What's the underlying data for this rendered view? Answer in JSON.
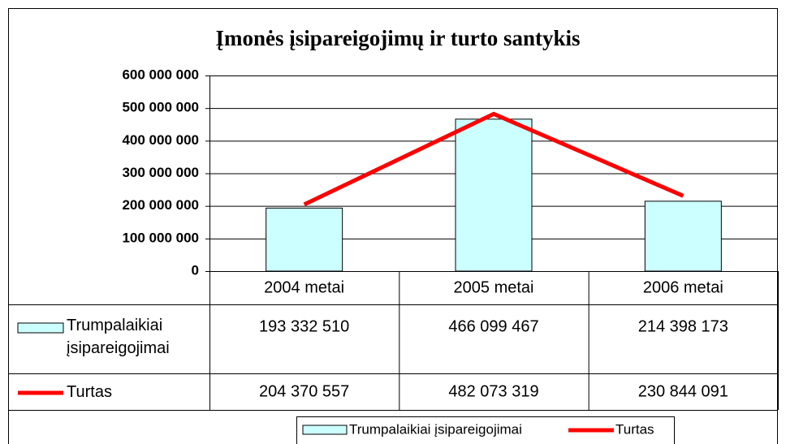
{
  "chart_data": {
    "type": "bar_line_table",
    "title": "Įmonės įsipareigojimų ir turto santykis",
    "categories": [
      "2004 metai",
      "2005 metai",
      "2006 metai"
    ],
    "series": [
      {
        "name": "Trumpalaikiai įsipareigojimai",
        "type": "bar",
        "color": "#ccffff",
        "values": [
          193332510,
          466099467,
          214398173
        ],
        "value_labels": [
          "193 332 510",
          "466 099 467",
          "214 398 173"
        ]
      },
      {
        "name": "Turtas",
        "type": "line",
        "color": "#ff0000",
        "values": [
          204370557,
          482073319,
          230844091
        ],
        "value_labels": [
          "204 370 557",
          "482 073 319",
          "230 844 091"
        ]
      }
    ],
    "ylim": [
      0,
      600000000
    ],
    "yticks": [
      0,
      {
        "value": 100000000,
        "label": "100 000 000"
      },
      {
        "value": 200000000,
        "label": "200 000 000"
      },
      {
        "value": 300000000,
        "label": "300 000 000"
      },
      {
        "value": 400000000,
        "label": "400 000 000"
      },
      {
        "value": 500000000,
        "label": "500 000 000"
      },
      {
        "value": 600000000,
        "label": "600 000 000"
      }
    ],
    "grid": true,
    "legend": "bottom"
  }
}
